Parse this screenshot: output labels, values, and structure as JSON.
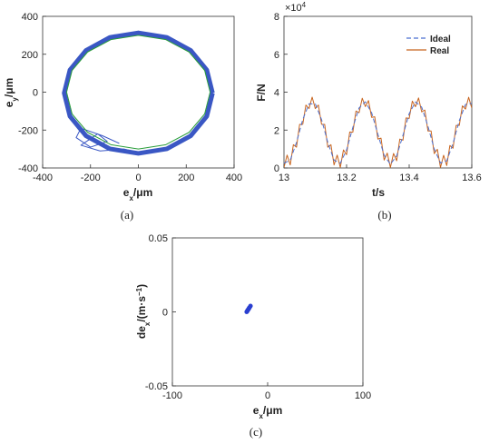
{
  "chart_data": [
    {
      "type": "line",
      "panel_label": "(a)",
      "xlabel": [
        "e",
        "x",
        "/μm"
      ],
      "ylabel": [
        "e",
        "y",
        "/μm"
      ],
      "xlim": [
        -400,
        400
      ],
      "ylim": [
        -400,
        400
      ],
      "xticks": [
        -400,
        -200,
        0,
        200,
        400
      ],
      "yticks": [
        -400,
        -200,
        0,
        200,
        400
      ],
      "series": [
        {
          "color": "#3a57c4",
          "x": [
            310,
            286,
            219,
            119,
            0,
            -119,
            -219,
            -286,
            -310,
            -286,
            -219,
            -119,
            0,
            119,
            219,
            286,
            310
          ],
          "values": [
            -5,
            117,
            220,
            289,
            313,
            289,
            220,
            117,
            -5,
            -127,
            -230,
            -299,
            -323,
            -299,
            -230,
            -127,
            -5
          ]
        },
        {
          "color": "#3a57c4",
          "x": [
            -80,
            -150,
            -240,
            -260,
            -200,
            -130,
            -170,
            -240,
            -160,
            -60,
            0
          ],
          "values": [
            -270,
            -230,
            -190,
            -240,
            -290,
            -260,
            -220,
            -280,
            -310,
            -300,
            -320
          ]
        },
        {
          "color": "#2a9d3a",
          "x": [
            300,
            277,
            212,
            115,
            0,
            -115,
            -212,
            -277,
            -300,
            -277,
            -212,
            -115,
            0,
            115,
            212,
            277,
            300
          ],
          "values": [
            0,
            115,
            212,
            277,
            300,
            277,
            212,
            115,
            0,
            -115,
            -212,
            -277,
            -300,
            -277,
            -212,
            -115,
            0
          ]
        }
      ]
    },
    {
      "type": "line",
      "panel_label": "(b)",
      "xlabel": [
        "t/s"
      ],
      "ylabel": [
        "F/N"
      ],
      "multiplier": [
        "×10",
        "4"
      ],
      "xlim": [
        13,
        13.6
      ],
      "ylim": [
        0,
        80000
      ],
      "xticks": [
        13,
        13.2,
        13.4,
        13.6
      ],
      "yticks": [
        {
          "value": 0,
          "label": "0"
        },
        {
          "value": 20000,
          "label": "2"
        },
        {
          "value": 40000,
          "label": "4"
        },
        {
          "value": 60000,
          "label": "6"
        },
        {
          "value": 80000,
          "label": "8"
        }
      ],
      "legend": "upper right",
      "series": [
        {
          "name": "Real",
          "color": "#c8641e",
          "dashed": false,
          "x": [
            13.0,
            13.01,
            13.02,
            13.03,
            13.04,
            13.05,
            13.06,
            13.07,
            13.08,
            13.09,
            13.1,
            13.11,
            13.12,
            13.13,
            13.14,
            13.15,
            13.16,
            13.17,
            13.18,
            13.19,
            13.2,
            13.21,
            13.22,
            13.23,
            13.24,
            13.25,
            13.26,
            13.27,
            13.28,
            13.29,
            13.3,
            13.31,
            13.32,
            13.33,
            13.34,
            13.35,
            13.36,
            13.37,
            13.38,
            13.39,
            13.4,
            13.41,
            13.42,
            13.43,
            13.44,
            13.45,
            13.46,
            13.47,
            13.48,
            13.49,
            13.5,
            13.51,
            13.52,
            13.53,
            13.54,
            13.55,
            13.56,
            13.57,
            13.58,
            13.59,
            13.6
          ],
          "values": [
            300,
            6800,
            1600,
            12290,
            10980,
            23020,
            23060,
            33200,
            31350,
            37350,
            31350,
            33200,
            23060,
            23020,
            10980,
            12290,
            1600,
            6800,
            300,
            9510,
            7020,
            18960,
            18890,
            30050,
            29200,
            36800,
            32400,
            35550,
            26690,
            26980,
            15270,
            15730,
            4190,
            7850,
            300,
            7660,
            3820,
            15240,
            14650,
            26420,
            26180,
            35250,
            32320,
            36960,
            29600,
            30550,
            19500,
            19540,
            7580,
            9860,
            300,
            6710,
            1280,
            11850,
            10420,
            22440,
            22450,
            32760,
            31060,
            37310,
            31560
          ]
        },
        {
          "name": "Ideal",
          "color": "#4a6fd0",
          "dashed": true,
          "x": [
            13.0,
            13.02,
            13.04,
            13.06,
            13.08,
            13.1,
            13.12,
            13.14,
            13.16,
            13.18,
            13.2,
            13.22,
            13.24,
            13.26,
            13.28,
            13.3,
            13.32,
            13.34,
            13.36,
            13.38,
            13.4,
            13.42,
            13.44,
            13.46,
            13.48,
            13.5,
            13.52,
            13.54,
            13.56,
            13.58,
            13.6
          ],
          "values": [
            2500,
            4100,
            13480,
            25560,
            33850,
            33850,
            25560,
            13480,
            4100,
            2500,
            9520,
            21390,
            31700,
            34900,
            29190,
            17770,
            6690,
            2000,
            6320,
            17150,
            28680,
            34820,
            32100,
            22000,
            10080,
            2640,
            3780,
            12920,
            24950,
            33560,
            34060
          ]
        }
      ]
    },
    {
      "type": "scatter",
      "panel_label": "(c)",
      "xlabel": [
        "e",
        "x",
        "/μm"
      ],
      "ylabel": [
        "de",
        "x",
        "/(m·s",
        "−1",
        ")"
      ],
      "xlim": [
        -100,
        100
      ],
      "ylim": [
        -0.05,
        0.05
      ],
      "xticks": [
        -100,
        0,
        100
      ],
      "yticks": [
        -0.05,
        0,
        0.05
      ],
      "series": [
        {
          "color": "#2a3fd0",
          "x": [
            -22,
            -21.5,
            -21,
            -20.5,
            -20,
            -19.5,
            -19,
            -18
          ],
          "values": [
            0,
            0.0005,
            0.001,
            0.0015,
            0.002,
            0.0025,
            0.003,
            0.004
          ]
        }
      ]
    }
  ]
}
